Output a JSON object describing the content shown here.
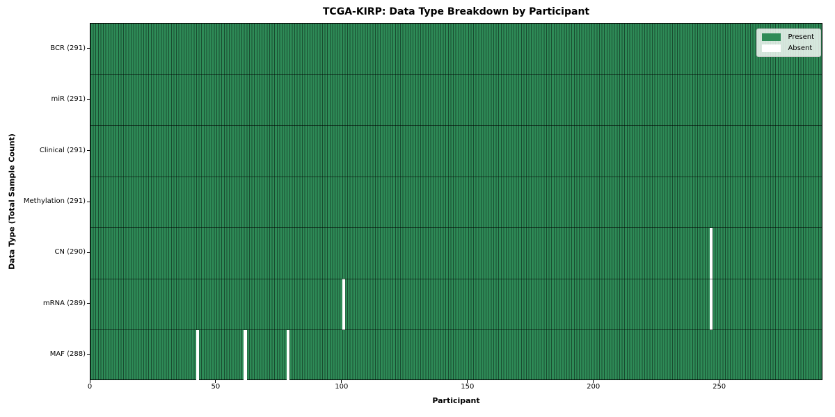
{
  "chart_data": {
    "type": "heatmap",
    "title": "TCGA-KIRP: Data Type Breakdown by Participant",
    "xlabel": "Participant",
    "ylabel": "Data Type (Total Sample Count)",
    "n_participants": 291,
    "xlim": [
      0,
      291
    ],
    "x_ticks": [
      0,
      50,
      100,
      150,
      200,
      250
    ],
    "rows": [
      {
        "label": "BCR (291)",
        "data_type": "BCR",
        "present_count": 291,
        "absent_participants": []
      },
      {
        "label": "miR (291)",
        "data_type": "miR",
        "present_count": 291,
        "absent_participants": []
      },
      {
        "label": "Clinical (291)",
        "data_type": "Clinical",
        "present_count": 291,
        "absent_participants": []
      },
      {
        "label": "Methylation (291)",
        "data_type": "Methylation",
        "present_count": 291,
        "absent_participants": []
      },
      {
        "label": "CN (290)",
        "data_type": "CN",
        "present_count": 290,
        "absent_participants": [
          246
        ]
      },
      {
        "label": "mRNA (289)",
        "data_type": "mRNA",
        "present_count": 289,
        "absent_participants": [
          100,
          246
        ]
      },
      {
        "label": "MAF (288)",
        "data_type": "MAF",
        "present_count": 288,
        "absent_participants": [
          42,
          61,
          78
        ]
      }
    ],
    "legend": [
      {
        "label": "Present",
        "color": "#2e8b57"
      },
      {
        "label": "Absent",
        "color": "#ffffff"
      }
    ],
    "legend_position": "upper right",
    "grid": false,
    "colors": {
      "present": "#2e8b57",
      "absent": "#ffffff",
      "cell_edge": "rgba(0,0,0,0.45)",
      "row_divider": "rgba(0,0,0,0.55)"
    }
  }
}
